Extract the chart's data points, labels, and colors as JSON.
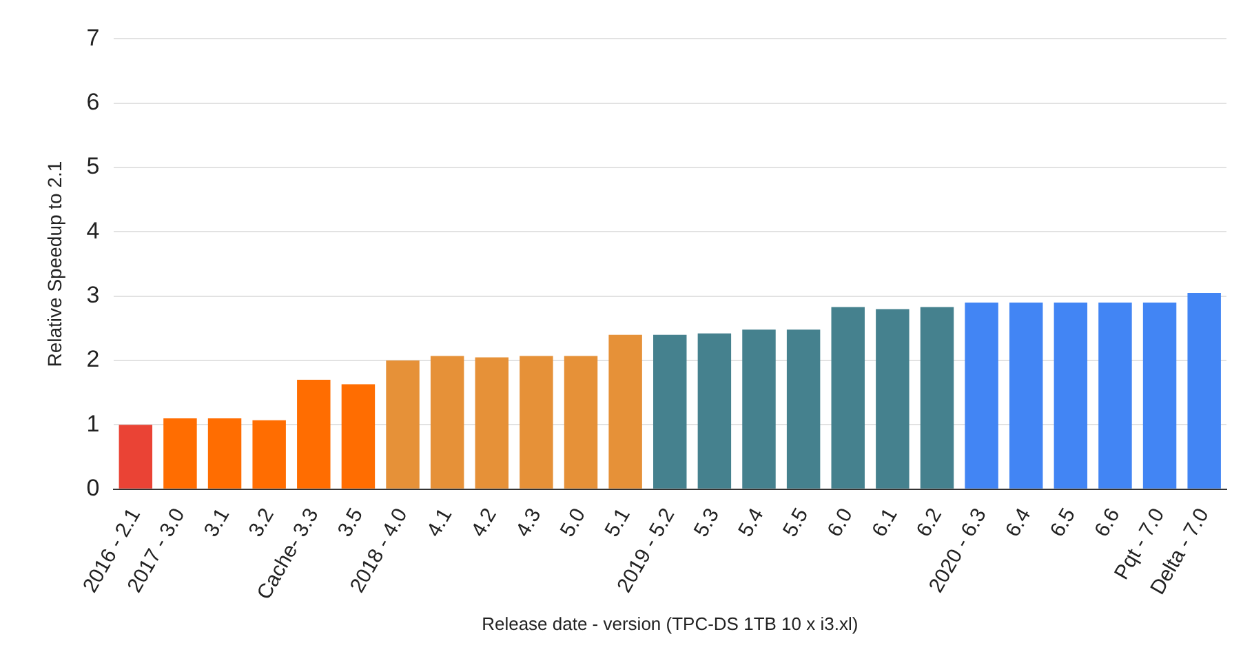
{
  "chart_data": {
    "type": "bar",
    "ylabel": "Relative Speedup to 2.1",
    "xlabel": "Release date - version (TPC-DS 1TB 10 x i3.xl)",
    "categories": [
      "2016 - 2.1",
      "2017 - 3.0",
      "3.1",
      "3.2",
      "Cache- 3.3",
      "3.5",
      "2018 - 4.0",
      "4.1",
      "4.2",
      "4.3",
      "5.0",
      "5.1",
      "2019 - 5.2",
      "5.3",
      "5.4",
      "5.5",
      "6.0",
      "6.1",
      "6.2",
      "2020 - 6.3",
      "6.4",
      "6.5",
      "6.6",
      "Pqt - 7.0",
      "Delta - 7.0"
    ],
    "values": [
      1.0,
      1.1,
      1.1,
      1.07,
      1.7,
      1.63,
      2.0,
      2.07,
      2.05,
      2.07,
      2.07,
      2.4,
      2.4,
      2.42,
      2.48,
      2.48,
      2.83,
      2.8,
      2.83,
      2.9,
      2.9,
      2.9,
      2.9,
      2.9,
      3.05
    ],
    "colors": [
      "#ea4335",
      "#ff6d01",
      "#ff6d01",
      "#ff6d01",
      "#ff6d01",
      "#ff6d01",
      "#e69138",
      "#e69138",
      "#e69138",
      "#e69138",
      "#e69138",
      "#e69138",
      "#45818e",
      "#45818e",
      "#45818e",
      "#45818e",
      "#45818e",
      "#45818e",
      "#45818e",
      "#4285f4",
      "#4285f4",
      "#4285f4",
      "#4285f4",
      "#4285f4",
      "#4285f4"
    ],
    "ylim": [
      0,
      7
    ],
    "yticks": [
      0,
      1,
      2,
      3,
      4,
      5,
      6,
      7
    ],
    "grid": "y",
    "legend": false
  }
}
